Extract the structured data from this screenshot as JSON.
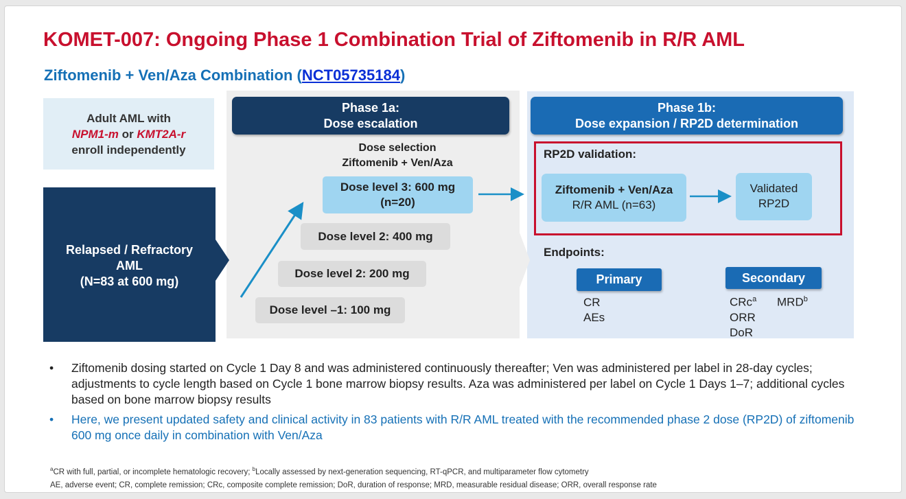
{
  "title": "KOMET-007: Ongoing Phase 1 Combination Trial of Ziftomenib in R/R AML",
  "subtitle": {
    "prefix": "Ziftomenib + Ven/Aza Combination (",
    "link": "NCT05735184",
    "suffix": ")"
  },
  "eligibility": {
    "line1": "Adult AML with",
    "npm1": "NPM1-m",
    "or": " or ",
    "kmt2a": "KMT2A-r",
    "line3": "enroll independently"
  },
  "population": {
    "line1": "Relapsed / Refractory",
    "line2": "AML",
    "line3": "(N=83 at 600 mg)"
  },
  "phase1a": {
    "title": "Phase 1a:",
    "subtitle": "Dose escalation",
    "dose_selection_line1": "Dose selection",
    "dose_selection_line2": "Ziftomenib + Ven/Aza",
    "doses": {
      "level3_line1": "Dose level 3: 600 mg",
      "level3_line2": "(n=20)",
      "level2a": "Dose level 2: 400 mg",
      "level2b": "Dose level 2: 200 mg",
      "level_minus1": "Dose level –1: 100 mg"
    }
  },
  "phase1b": {
    "title": "Phase 1b:",
    "subtitle": "Dose expansion / RP2D determination",
    "rp2d_label": "RP2D validation:",
    "combo_line1": "Ziftomenib + Ven/Aza",
    "combo_line2": "R/R AML (n=63)",
    "validated_line1": "Validated",
    "validated_line2": "RP2D",
    "endpoints_label": "Endpoints:",
    "primary_label": "Primary",
    "primary_items": [
      "CR",
      "AEs"
    ],
    "secondary_label": "Secondary",
    "secondary_items": [
      "CRc",
      "ORR",
      "DoR"
    ],
    "secondary_mrd": "MRD",
    "sup_a": "a",
    "sup_b": "b"
  },
  "bullets": [
    "Ziftomenib dosing started on Cycle 1 Day 8 and was administered continuously thereafter; Ven was administered per label in 28-day cycles; adjustments to cycle length based on Cycle 1 bone marrow biopsy results. Aza was administered per label on Cycle 1 Days 1–7; additional cycles based on bone marrow biopsy results",
    "Here, we present updated safety and clinical activity in 83 patients with R/R AML treated with the recommended phase 2 dose (RP2D) of ziftomenib 600 mg once daily in combination with Ven/Aza"
  ],
  "bullet_symbol": "•",
  "footnotes": {
    "a_mark": "a",
    "a_text": "CR with full, partial, or incomplete hematologic recovery; ",
    "b_mark": "b",
    "b_text": "Locally assessed by next-generation sequencing, RT-qPCR, and multiparameter flow cytometry",
    "abbreviations": "AE, adverse event; CR, complete remission; CRc, composite complete remission; DoR, duration of response; MRD, measurable residual disease; ORR, overall response rate"
  },
  "colors": {
    "title_red": "#c8102e",
    "subtitle_blue": "#1570b6",
    "navy": "#173b63",
    "mid_blue": "#1a6bb4",
    "light_blue": "#9fd5f1",
    "arrow_blue": "#1a8fc7"
  }
}
